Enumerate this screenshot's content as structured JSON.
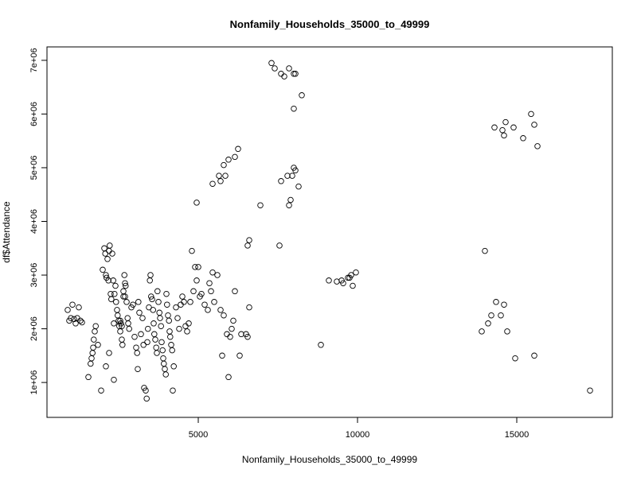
{
  "chart_data": {
    "type": "scatter",
    "title": "Nonfamily_Households_35000_to_49999",
    "xlabel": "Nonfamily_Households_35000_to_49999",
    "ylabel": "df$Attendance",
    "xlim": [
      250,
      18000
    ],
    "ylim": [
      350000,
      7250000
    ],
    "x_ticks": [
      5000,
      10000,
      15000
    ],
    "x_tick_labels": [
      "5000",
      "10000",
      "15000"
    ],
    "y_ticks": [
      1000000,
      2000000,
      3000000,
      4000000,
      5000000,
      6000000,
      7000000
    ],
    "y_tick_labels": [
      "1e+06",
      "2e+06",
      "3e+06",
      "4e+06",
      "5e+06",
      "6e+06",
      "7e+06"
    ],
    "marker": "open-circle",
    "grid": false,
    "legend": "none",
    "points": [
      [
        900,
        2350000
      ],
      [
        950,
        2150000
      ],
      [
        1000,
        2200000
      ],
      [
        1050,
        2450000
      ],
      [
        1100,
        2180000
      ],
      [
        1150,
        2100000
      ],
      [
        1200,
        2200000
      ],
      [
        1250,
        2400000
      ],
      [
        1300,
        2150000
      ],
      [
        1350,
        2120000
      ],
      [
        1550,
        1100000
      ],
      [
        1620,
        1350000
      ],
      [
        1650,
        1450000
      ],
      [
        1680,
        1550000
      ],
      [
        1700,
        1650000
      ],
      [
        1720,
        1800000
      ],
      [
        1750,
        1950000
      ],
      [
        1780,
        2050000
      ],
      [
        1850,
        1700000
      ],
      [
        1950,
        850000
      ],
      [
        2000,
        3100000
      ],
      [
        2050,
        3500000
      ],
      [
        2080,
        3400000
      ],
      [
        2100,
        3000000
      ],
      [
        2120,
        2950000
      ],
      [
        2150,
        3300000
      ],
      [
        2180,
        2900000
      ],
      [
        2200,
        3450000
      ],
      [
        2220,
        3550000
      ],
      [
        2250,
        2650000
      ],
      [
        2270,
        2550000
      ],
      [
        2300,
        3400000
      ],
      [
        2330,
        2900000
      ],
      [
        2350,
        2100000
      ],
      [
        2370,
        2650000
      ],
      [
        2400,
        2800000
      ],
      [
        2420,
        2500000
      ],
      [
        2450,
        2350000
      ],
      [
        2470,
        2250000
      ],
      [
        2500,
        2150000
      ],
      [
        2520,
        2050000
      ],
      [
        2550,
        1950000
      ],
      [
        2570,
        2100000
      ],
      [
        2600,
        1800000
      ],
      [
        2620,
        1700000
      ],
      [
        2650,
        2600000
      ],
      [
        2680,
        3000000
      ],
      [
        2700,
        2850000
      ],
      [
        2720,
        2800000
      ],
      [
        2750,
        2500000
      ],
      [
        2780,
        2200000
      ],
      [
        2800,
        2100000
      ],
      [
        2830,
        2000000
      ],
      [
        2100,
        1300000
      ],
      [
        2200,
        1550000
      ],
      [
        2350,
        1050000
      ],
      [
        2550,
        2150000
      ],
      [
        2600,
        2050000
      ],
      [
        2650,
        2700000
      ],
      [
        2700,
        2600000
      ],
      [
        2900,
        2400000
      ],
      [
        2950,
        2450000
      ],
      [
        3000,
        1850000
      ],
      [
        3050,
        1650000
      ],
      [
        3080,
        1550000
      ],
      [
        3100,
        1250000
      ],
      [
        3120,
        2500000
      ],
      [
        3150,
        2300000
      ],
      [
        3200,
        1900000
      ],
      [
        3250,
        2200000
      ],
      [
        3280,
        1700000
      ],
      [
        3300,
        900000
      ],
      [
        3350,
        850000
      ],
      [
        3380,
        700000
      ],
      [
        3400,
        1750000
      ],
      [
        3420,
        2000000
      ],
      [
        3450,
        2400000
      ],
      [
        3480,
        2900000
      ],
      [
        3500,
        3000000
      ],
      [
        3520,
        2600000
      ],
      [
        3550,
        2550000
      ],
      [
        3580,
        2350000
      ],
      [
        3600,
        2100000
      ],
      [
        3620,
        1900000
      ],
      [
        3650,
        1800000
      ],
      [
        3680,
        1650000
      ],
      [
        3700,
        1550000
      ],
      [
        3720,
        2700000
      ],
      [
        3750,
        2500000
      ],
      [
        3780,
        2300000
      ],
      [
        3800,
        2200000
      ],
      [
        3830,
        2050000
      ],
      [
        3850,
        1750000
      ],
      [
        3880,
        1600000
      ],
      [
        3900,
        1450000
      ],
      [
        3920,
        1350000
      ],
      [
        3950,
        1250000
      ],
      [
        3980,
        1150000
      ],
      [
        4000,
        2650000
      ],
      [
        4020,
        2450000
      ],
      [
        4050,
        2250000
      ],
      [
        4080,
        2150000
      ],
      [
        4100,
        1950000
      ],
      [
        4120,
        1850000
      ],
      [
        4150,
        1700000
      ],
      [
        4180,
        1600000
      ],
      [
        4200,
        850000
      ],
      [
        4230,
        1300000
      ],
      [
        4300,
        2400000
      ],
      [
        4350,
        2200000
      ],
      [
        4400,
        2000000
      ],
      [
        4450,
        2450000
      ],
      [
        4500,
        2600000
      ],
      [
        4550,
        2500000
      ],
      [
        4600,
        2050000
      ],
      [
        4650,
        1950000
      ],
      [
        4700,
        2100000
      ],
      [
        4750,
        2500000
      ],
      [
        4800,
        3450000
      ],
      [
        4850,
        2700000
      ],
      [
        4900,
        3150000
      ],
      [
        4950,
        2900000
      ],
      [
        5000,
        3150000
      ],
      [
        5050,
        2600000
      ],
      [
        5100,
        2650000
      ],
      [
        5200,
        2450000
      ],
      [
        5300,
        2350000
      ],
      [
        5350,
        2850000
      ],
      [
        5400,
        2700000
      ],
      [
        5450,
        3050000
      ],
      [
        5500,
        2500000
      ],
      [
        5600,
        3000000
      ],
      [
        5700,
        2350000
      ],
      [
        5750,
        1500000
      ],
      [
        5800,
        2250000
      ],
      [
        5900,
        1900000
      ],
      [
        5950,
        1100000
      ],
      [
        6000,
        1850000
      ],
      [
        6050,
        2000000
      ],
      [
        6100,
        2150000
      ],
      [
        6150,
        2700000
      ],
      [
        6300,
        1500000
      ],
      [
        6350,
        1900000
      ],
      [
        6500,
        1900000
      ],
      [
        6550,
        1850000
      ],
      [
        6600,
        2400000
      ],
      [
        4950,
        4350000
      ],
      [
        5450,
        4700000
      ],
      [
        5650,
        4850000
      ],
      [
        5700,
        4750000
      ],
      [
        5800,
        5050000
      ],
      [
        5850,
        4850000
      ],
      [
        5950,
        5150000
      ],
      [
        6150,
        5200000
      ],
      [
        6250,
        5350000
      ],
      [
        6550,
        3550000
      ],
      [
        6600,
        3650000
      ],
      [
        6950,
        4300000
      ],
      [
        7550,
        3550000
      ],
      [
        7600,
        4750000
      ],
      [
        7800,
        4850000
      ],
      [
        7850,
        4300000
      ],
      [
        7900,
        4400000
      ],
      [
        7950,
        4850000
      ],
      [
        8000,
        5000000
      ],
      [
        8050,
        4950000
      ],
      [
        8150,
        4650000
      ],
      [
        8000,
        6100000
      ],
      [
        7300,
        6950000
      ],
      [
        7400,
        6850000
      ],
      [
        7600,
        6750000
      ],
      [
        7700,
        6700000
      ],
      [
        7850,
        6850000
      ],
      [
        8000,
        6750000
      ],
      [
        8050,
        6750000
      ],
      [
        8250,
        6350000
      ],
      [
        8850,
        1700000
      ],
      [
        9100,
        2900000
      ],
      [
        9350,
        2880000
      ],
      [
        9500,
        2900000
      ],
      [
        9550,
        2850000
      ],
      [
        9700,
        2950000
      ],
      [
        9750,
        2950000
      ],
      [
        9800,
        3000000
      ],
      [
        9850,
        2800000
      ],
      [
        9950,
        3050000
      ],
      [
        13900,
        1950000
      ],
      [
        14000,
        3450000
      ],
      [
        14100,
        2100000
      ],
      [
        14200,
        2250000
      ],
      [
        14350,
        2500000
      ],
      [
        14500,
        2250000
      ],
      [
        14600,
        2450000
      ],
      [
        14700,
        1950000
      ],
      [
        14950,
        1450000
      ],
      [
        15550,
        1500000
      ],
      [
        17300,
        850000
      ],
      [
        14300,
        5750000
      ],
      [
        14550,
        5700000
      ],
      [
        14600,
        5600000
      ],
      [
        14650,
        5850000
      ],
      [
        14900,
        5750000
      ],
      [
        15200,
        5550000
      ],
      [
        15450,
        6000000
      ],
      [
        15550,
        5800000
      ],
      [
        15650,
        5400000
      ]
    ]
  }
}
